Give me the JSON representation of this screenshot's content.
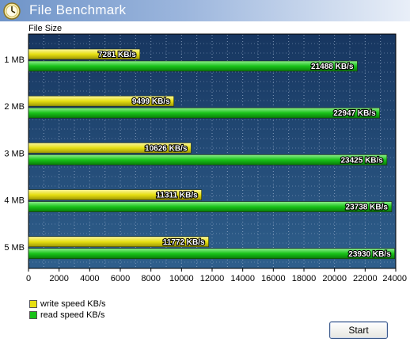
{
  "window": {
    "title": "File Benchmark",
    "icon": "benchmark-icon"
  },
  "chart_header": "File Size",
  "buttons": {
    "start_label": "Start"
  },
  "legend": [
    {
      "label": "write speed KB/s",
      "color": "#e6df12"
    },
    {
      "label": "read speed KB/s",
      "color": "#19c219"
    }
  ],
  "colors": {
    "write": "#e6df12",
    "read": "#19c219",
    "plot_bg_top": "#173660",
    "plot_bg_bottom": "#2f5f8c"
  },
  "chart_data": {
    "type": "bar",
    "orientation": "horizontal",
    "categories": [
      "1 MB",
      "2 MB",
      "3 MB",
      "4 MB",
      "5 MB"
    ],
    "series": [
      {
        "name": "write speed KB/s",
        "values": [
          7281,
          9499,
          10626,
          11311,
          11772
        ],
        "labels": [
          "7281 KB/s",
          "9499 KB/s",
          "10626 KB/s",
          "11311 KB/s",
          "11772 KB/s"
        ]
      },
      {
        "name": "read speed KB/s",
        "values": [
          21488,
          22947,
          23425,
          23738,
          23930
        ],
        "labels": [
          "21488 KB/s",
          "22947 KB/s",
          "23425 KB/s",
          "23738 KB/s",
          "23930 KB/s"
        ]
      }
    ],
    "xlim": [
      0,
      24000
    ],
    "xticks": [
      0,
      2000,
      4000,
      6000,
      8000,
      10000,
      12000,
      14000,
      16000,
      18000,
      20000,
      22000,
      24000
    ],
    "grid": true,
    "legend_position": "bottom-left"
  }
}
